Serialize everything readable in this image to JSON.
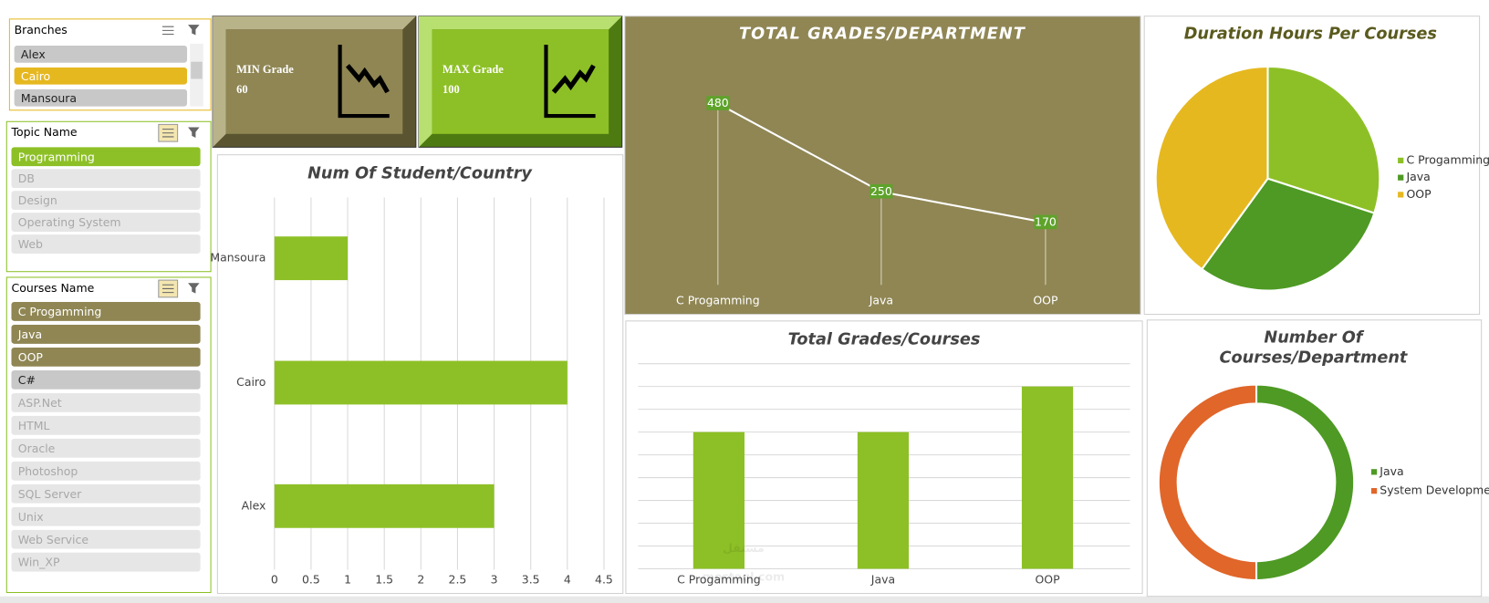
{
  "slicers": [
    {
      "title": "Branches",
      "items": [
        {
          "label": "Alex",
          "state": "available"
        },
        {
          "label": "Cairo",
          "state": "selected"
        },
        {
          "label": "Mansoura",
          "state": "available"
        }
      ]
    },
    {
      "title": "Topic Name",
      "items": [
        {
          "label": "Programming",
          "state": "selected"
        },
        {
          "label": "DB",
          "state": "empty"
        },
        {
          "label": "Design",
          "state": "empty"
        },
        {
          "label": "Operating System",
          "state": "empty"
        },
        {
          "label": "Web",
          "state": "empty"
        }
      ]
    },
    {
      "title": "Courses Name",
      "items": [
        {
          "label": "C Progamming",
          "state": "selected"
        },
        {
          "label": "Java",
          "state": "selected"
        },
        {
          "label": "OOP",
          "state": "selected"
        },
        {
          "label": "C#",
          "state": "available"
        },
        {
          "label": "ASP.Net",
          "state": "empty"
        },
        {
          "label": "HTML",
          "state": "empty"
        },
        {
          "label": "Oracle",
          "state": "empty"
        },
        {
          "label": "Photoshop",
          "state": "empty"
        },
        {
          "label": "SQL Server",
          "state": "empty"
        },
        {
          "label": "Unix",
          "state": "empty"
        },
        {
          "label": "Web Service",
          "state": "empty"
        },
        {
          "label": "Win_XP",
          "state": "empty"
        }
      ]
    }
  ],
  "kpis": [
    {
      "label": "MIN Grade",
      "value": 60
    },
    {
      "label": "MAX Grade",
      "value": 100
    }
  ],
  "watermark": {
    "arabic": "مستقل",
    "latin": "mostaql.com"
  },
  "chart_data": [
    {
      "type": "line",
      "title": "TOTAL GRADES/DEPARTMENT",
      "categories": [
        "C Progamming",
        "Java",
        "OOP"
      ],
      "values": [
        480,
        250,
        170
      ],
      "color": "#ffffff"
    },
    {
      "type": "hbar",
      "title": "Num Of Student/Country",
      "categories": [
        "Alex",
        "Cairo",
        "Mansoura"
      ],
      "values": [
        3,
        4,
        1
      ],
      "color": "#8dc026",
      "xlim": [
        0,
        4.5
      ],
      "xticks": [
        0,
        0.5,
        1,
        1.5,
        2,
        2.5,
        3,
        3.5,
        4,
        4.5
      ],
      "grid": true
    },
    {
      "type": "bar",
      "title": "Total Grades/Courses",
      "categories": [
        "C Progamming",
        "Java",
        "OOP"
      ],
      "values": [
        6,
        6,
        8
      ],
      "color": "#8dc026",
      "ylim": [
        0,
        9
      ],
      "grid": true
    },
    {
      "type": "pie",
      "title": "Duration Hours Per Courses",
      "series": [
        {
          "name": "C Progamming",
          "color": "#8dc026",
          "values": [
            30
          ]
        },
        {
          "name": "Java",
          "color": "#4e9a24",
          "values": [
            30
          ]
        },
        {
          "name": "OOP",
          "color": "#e6b820",
          "values": [
            40
          ]
        }
      ]
    },
    {
      "type": "donut",
      "title": [
        "Number Of",
        "Courses/Department"
      ],
      "series": [
        {
          "name": "Java",
          "color": "#4e9a24",
          "values": [
            1
          ]
        },
        {
          "name": "System Development",
          "color": "#e0662a",
          "values": [
            1
          ]
        }
      ]
    }
  ]
}
